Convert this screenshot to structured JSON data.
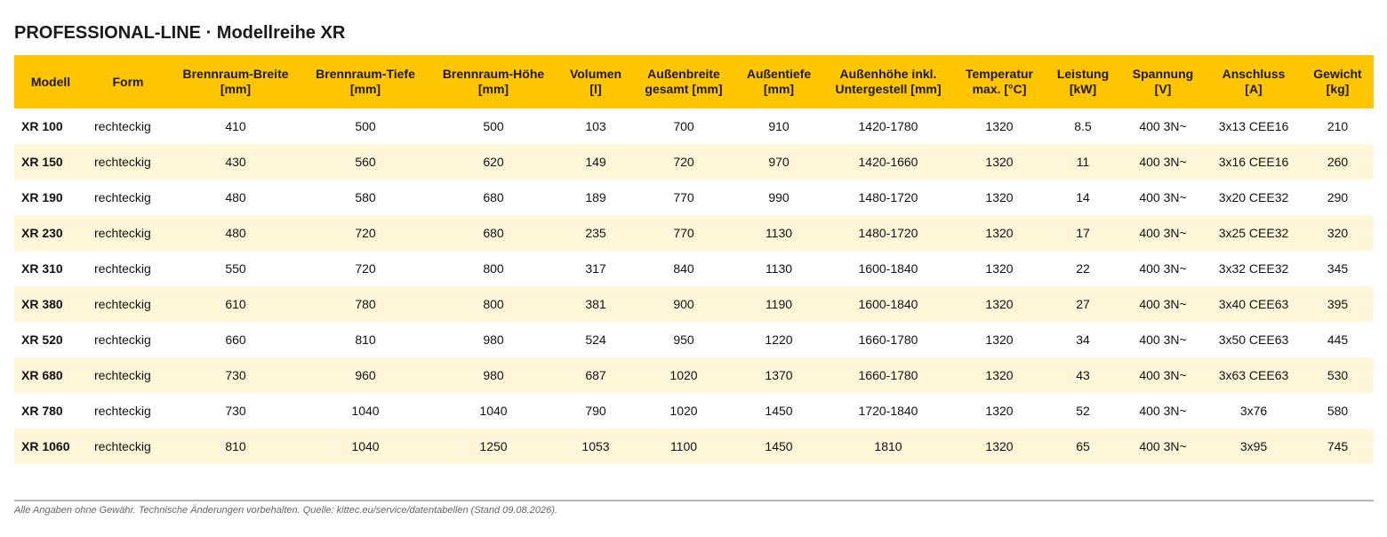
{
  "title": "PROFESSIONAL-LINE · Modellreihe XR",
  "table": {
    "headers": [
      [
        "Modell",
        ""
      ],
      [
        "Form",
        ""
      ],
      [
        "Brennraum-Breite",
        "[mm]"
      ],
      [
        "Brennraum-Tiefe",
        "[mm]"
      ],
      [
        "Brennraum-Höhe",
        "[mm]"
      ],
      [
        "Volumen",
        "[l]"
      ],
      [
        "Außenbreite",
        "gesamt [mm]"
      ],
      [
        "Außentiefe",
        "[mm]"
      ],
      [
        "Außenhöhe inkl.",
        "Untergestell [mm]"
      ],
      [
        "Temperatur",
        "max. [°C]"
      ],
      [
        "Leistung",
        "[kW]"
      ],
      [
        "Spannung",
        "[V]"
      ],
      [
        "Anschluss",
        "[A]"
      ],
      [
        "Gewicht",
        "[kg]"
      ]
    ],
    "rows": [
      [
        "XR 100",
        "rechteckig",
        "410",
        "500",
        "500",
        "103",
        "700",
        "910",
        "1420-1780",
        "1320",
        "8.5",
        "400 3N~",
        "3x13 CEE16",
        "210"
      ],
      [
        "XR 150",
        "rechteckig",
        "430",
        "560",
        "620",
        "149",
        "720",
        "970",
        "1420-1660",
        "1320",
        "11",
        "400 3N~",
        "3x16 CEE16",
        "260"
      ],
      [
        "XR 190",
        "rechteckig",
        "480",
        "580",
        "680",
        "189",
        "770",
        "990",
        "1480-1720",
        "1320",
        "14",
        "400 3N~",
        "3x20 CEE32",
        "290"
      ],
      [
        "XR 230",
        "rechteckig",
        "480",
        "720",
        "680",
        "235",
        "770",
        "1130",
        "1480-1720",
        "1320",
        "17",
        "400 3N~",
        "3x25 CEE32",
        "320"
      ],
      [
        "XR 310",
        "rechteckig",
        "550",
        "720",
        "800",
        "317",
        "840",
        "1130",
        "1600-1840",
        "1320",
        "22",
        "400 3N~",
        "3x32 CEE32",
        "345"
      ],
      [
        "XR 380",
        "rechteckig",
        "610",
        "780",
        "800",
        "381",
        "900",
        "1190",
        "1600-1840",
        "1320",
        "27",
        "400 3N~",
        "3x40 CEE63",
        "395"
      ],
      [
        "XR 520",
        "rechteckig",
        "660",
        "810",
        "980",
        "524",
        "950",
        "1220",
        "1660-1780",
        "1320",
        "34",
        "400 3N~",
        "3x50 CEE63",
        "445"
      ],
      [
        "XR 680",
        "rechteckig",
        "730",
        "960",
        "980",
        "687",
        "1020",
        "1370",
        "1660-1780",
        "1320",
        "43",
        "400 3N~",
        "3x63 CEE63",
        "530"
      ],
      [
        "XR 780",
        "rechteckig",
        "730",
        "1040",
        "1040",
        "790",
        "1020",
        "1450",
        "1720-1840",
        "1320",
        "52",
        "400 3N~",
        "3x76",
        "580"
      ],
      [
        "XR 1060",
        "rechteckig",
        "810",
        "1040",
        "1250",
        "1053",
        "1100",
        "1450",
        "1810",
        "1320",
        "65",
        "400 3N~",
        "3x95",
        "745"
      ]
    ]
  },
  "footnote": "Alle Angaben ohne Gewähr. Technische Änderungen vorbehalten. Quelle: kittec.eu/service/datentabellen (Stand 09.08.2026).",
  "colors": {
    "header_bg": "#ffc600",
    "row_alt_bg": "#fff6d9",
    "footnote_text": "#666666",
    "rule": "#b5b5b5"
  }
}
